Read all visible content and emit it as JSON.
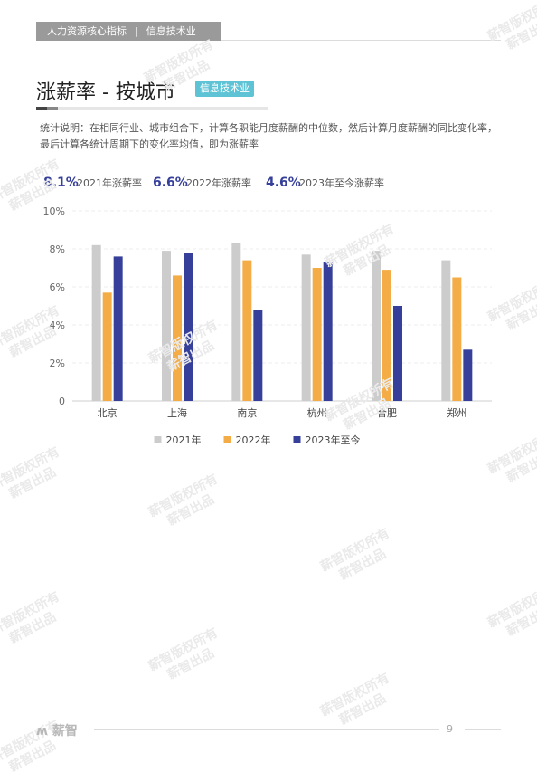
{
  "header": {
    "section": "人力资源核心指标",
    "separator": "|",
    "industry": "信息技术业"
  },
  "title": "涨薪率 - 按城市",
  "badge": "信息技术业",
  "description": "统计说明：在相同行业、城市组合下，计算各职能月度薪酬的中位数，然后计算月度薪酬的同比变化率，最后计算各统计周期下的变化率均值，即为涨薪率",
  "watermark": {
    "line1": "薪智版权所有",
    "line2": "薪智出品"
  },
  "footer": {
    "logo": "薪智",
    "page": "9"
  },
  "chart_data": {
    "type": "bar",
    "summary": [
      {
        "value": "8.1%",
        "label": "2021年涨薪率"
      },
      {
        "value": "6.6%",
        "label": "2022年涨薪率"
      },
      {
        "value": "4.6%",
        "label": "2023年至今涨薪率"
      }
    ],
    "categories": [
      "北京",
      "上海",
      "南京",
      "杭州",
      "合肥",
      "郑州"
    ],
    "series": [
      {
        "name": "2021年",
        "color": "#cccccc",
        "values": [
          8.2,
          7.9,
          8.3,
          7.7,
          7.9,
          7.4
        ]
      },
      {
        "name": "2022年",
        "color": "#f4ad46",
        "values": [
          5.7,
          6.6,
          7.4,
          7.0,
          6.9,
          6.5
        ]
      },
      {
        "name": "2023年至今",
        "color": "#36409a",
        "values": [
          7.6,
          7.8,
          4.8,
          7.3,
          5.0,
          2.7
        ]
      }
    ],
    "yticks": [
      "0",
      "2%",
      "4%",
      "6%",
      "8%",
      "10%"
    ],
    "ylim": [
      0,
      10
    ],
    "grid": true,
    "legend_position": "bottom",
    "summary_color": "#36409a"
  }
}
